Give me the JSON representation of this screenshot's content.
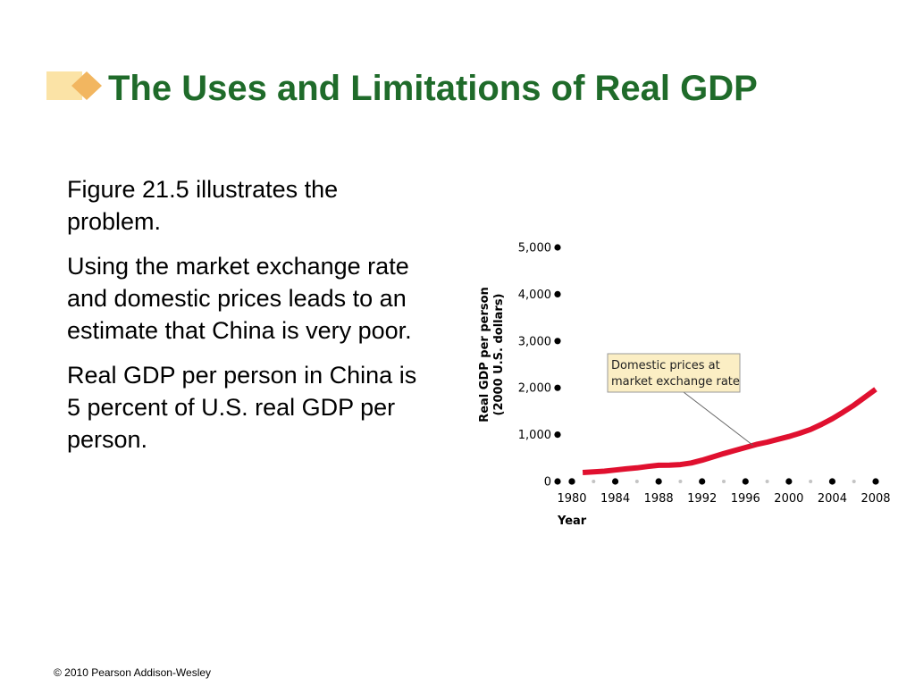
{
  "slide": {
    "title": "The Uses and Limitations of Real GDP",
    "paragraphs": [
      "Figure 21.5 illustrates the problem.",
      "Using the market exchange rate and domestic prices leads to an estimate that China is very poor.",
      "Real GDP per person in China is 5 percent of U.S. real GDP per person."
    ],
    "footer": "© 2010 Pearson Addison-Wesley",
    "title_color": "#1f6b2a",
    "icon": "diamond-bullet-icon"
  },
  "chart_data": {
    "type": "line",
    "xlabel": "Year",
    "ylabel": [
      "Real GDP per person",
      "(2000 U.S. dollars)"
    ],
    "y_ticks": [
      0,
      1000,
      2000,
      3000,
      4000,
      5000
    ],
    "y_tick_labels": [
      "0",
      "1,000",
      "2,000",
      "3,000",
      "4,000",
      "5,000"
    ],
    "x_ticks": [
      1980,
      1984,
      1988,
      1992,
      1996,
      2000,
      2004,
      2008
    ],
    "x_tick_labels": [
      "1980",
      "1984",
      "1988",
      "1992",
      "1996",
      "2000",
      "2004",
      "2008"
    ],
    "xlim": [
      1980,
      2008
    ],
    "ylim": [
      0,
      5000
    ],
    "series": [
      {
        "name": "Domestic prices at market exchange rate",
        "color": "#e0102f",
        "x": [
          1981,
          1982,
          1983,
          1984,
          1985,
          1986,
          1987,
          1988,
          1989,
          1990,
          1991,
          1992,
          1993,
          1994,
          1995,
          1996,
          1997,
          1998,
          1999,
          2000,
          2001,
          2002,
          2003,
          2004,
          2005,
          2006,
          2007,
          2008
        ],
        "values": [
          190,
          205,
          220,
          245,
          270,
          290,
          320,
          345,
          350,
          360,
          395,
          455,
          525,
          595,
          660,
          725,
          790,
          840,
          900,
          960,
          1030,
          1110,
          1220,
          1340,
          1480,
          1630,
          1800,
          1970
        ]
      }
    ],
    "annotation": [
      "Domestic prices at",
      "market exchange rate"
    ]
  }
}
